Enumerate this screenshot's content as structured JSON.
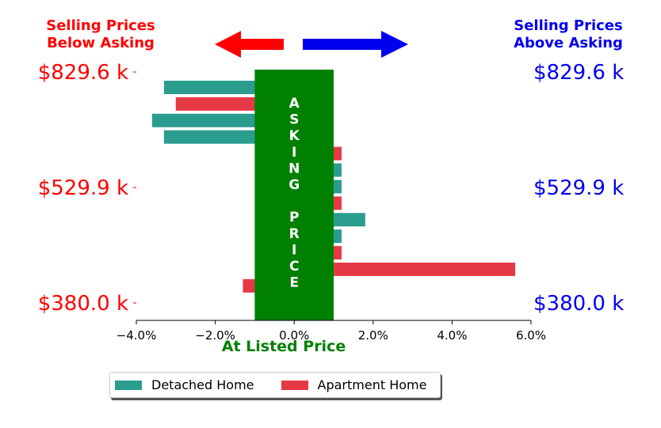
{
  "headers": {
    "left_line1": "Selling Prices",
    "left_line2": "Below Asking",
    "right_line1": "Selling Prices",
    "right_line2": "Above Asking"
  },
  "colors": {
    "below": "#ff0000",
    "above": "#0000ee",
    "asking_band": "#008000",
    "detached": "#2a9d8f",
    "apartment": "#e63946"
  },
  "asking_band_text": "ASKING PRICE",
  "xlabel": "At Listed Price",
  "chart_data": {
    "type": "bar",
    "orientation": "horizontal",
    "x_ticks": [
      "−4.0%",
      "−2.0%",
      "0.0%",
      "2.0%",
      "4.0%",
      "6.0%"
    ],
    "x_tick_values": [
      -4,
      -2,
      0,
      2,
      4,
      6
    ],
    "xlim": [
      -4,
      6
    ],
    "price_labels": [
      "$829.6 k",
      "$529.9 k",
      "$380.0 k"
    ],
    "asking_band_range": [
      -1,
      1
    ],
    "series": [
      {
        "name": "Detached Home",
        "color": "#2a9d8f"
      },
      {
        "name": "Apartment Home",
        "color": "#e63946"
      }
    ],
    "bars": [
      {
        "series": "Detached Home",
        "value": -3.3
      },
      {
        "series": "Apartment Home",
        "value": -3.0
      },
      {
        "series": "Detached Home",
        "value": -3.6
      },
      {
        "series": "Detached Home",
        "value": -3.3
      },
      {
        "series": "Apartment Home",
        "value": 1.2
      },
      {
        "series": "Detached Home",
        "value": 1.2
      },
      {
        "series": "Detached Home",
        "value": 1.2
      },
      {
        "series": "Apartment Home",
        "value": 1.2
      },
      {
        "series": "Detached Home",
        "value": 1.8
      },
      {
        "series": "Detached Home",
        "value": 1.2
      },
      {
        "series": "Apartment Home",
        "value": 1.2
      },
      {
        "series": "Apartment Home",
        "value": 5.6
      },
      {
        "series": "Apartment Home",
        "value": -1.3
      }
    ]
  }
}
